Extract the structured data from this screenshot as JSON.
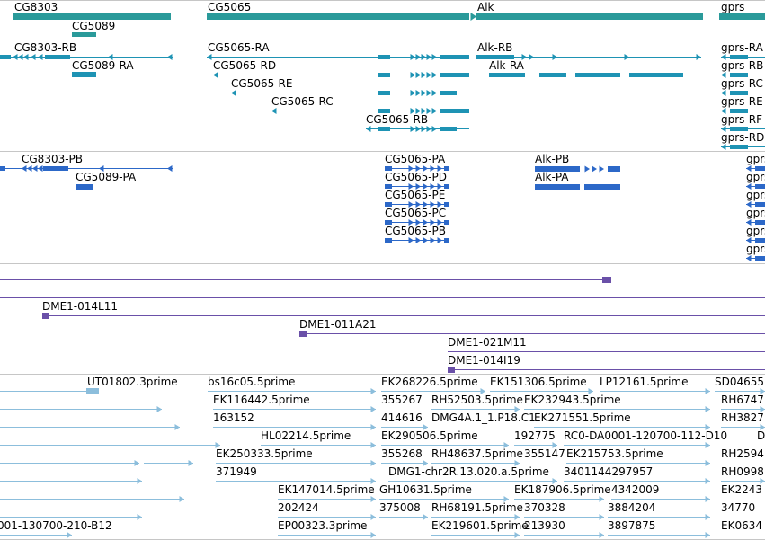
{
  "colors": {
    "gene": "#2a9a9a",
    "transcript": "#1e93b4",
    "protein": "#2c68c8",
    "bac": "#6a50a8",
    "est": "#8cbedc"
  },
  "tracks": {
    "genes": [
      {
        "label": "CG8303"
      },
      {
        "label": "CG5089"
      },
      {
        "label": "CG5065"
      },
      {
        "label": "Alk"
      },
      {
        "label": "gprs"
      }
    ],
    "transcripts": [
      {
        "label": "CG8303-RB"
      },
      {
        "label": "CG5089-RA"
      },
      {
        "label": "CG5065-RA"
      },
      {
        "label": "CG5065-RD"
      },
      {
        "label": "CG5065-RE"
      },
      {
        "label": "CG5065-RC"
      },
      {
        "label": "CG5065-RB"
      },
      {
        "label": "Alk-RB"
      },
      {
        "label": "Alk-RA"
      },
      {
        "label": "gprs-RA"
      },
      {
        "label": "gprs-RB"
      },
      {
        "label": "gprs-RC"
      },
      {
        "label": "gprs-RE"
      },
      {
        "label": "gprs-RF"
      },
      {
        "label": "gprs-RD"
      }
    ],
    "proteins": [
      {
        "label": "CG8303-PB"
      },
      {
        "label": "CG5089-PA"
      },
      {
        "label": "CG5065-PA"
      },
      {
        "label": "CG5065-PD"
      },
      {
        "label": "CG5065-PE"
      },
      {
        "label": "CG5065-PC"
      },
      {
        "label": "CG5065-PB"
      },
      {
        "label": "Alk-PB"
      },
      {
        "label": "Alk-PA"
      },
      {
        "label": "gprs"
      },
      {
        "label": "gprs"
      },
      {
        "label": "gprs"
      },
      {
        "label": "gprs"
      },
      {
        "label": "gprs"
      },
      {
        "label": "gprs"
      }
    ],
    "bacs": [
      {
        "label": "DME1-014L11"
      },
      {
        "label": "DME1-011A21"
      },
      {
        "label": "DME1-021M11"
      },
      {
        "label": "DME1-014I19"
      }
    ],
    "ests": [
      {
        "label": "UT01802.3prime"
      },
      {
        "label": "bs16c05.5prime"
      },
      {
        "label": "EK268226.5prime"
      },
      {
        "label": "EK151306.5prime"
      },
      {
        "label": "LP12161.5prime"
      },
      {
        "label": "SD04655"
      },
      {
        "label": "EK116442.5prime"
      },
      {
        "label": "355267"
      },
      {
        "label": "RH52503.5prime"
      },
      {
        "label": "EK232943.5prime"
      },
      {
        "label": "RH6747"
      },
      {
        "label": "163152"
      },
      {
        "label": "414616"
      },
      {
        "label": "DMG4A.1_1.P18.C1"
      },
      {
        "label": "EK271551.5prime"
      },
      {
        "label": "RH3827"
      },
      {
        "label": "HL02214.5prime"
      },
      {
        "label": "EK290506.5prime"
      },
      {
        "label": "192775"
      },
      {
        "label": "RC0-DA0001-120700-112-D10"
      },
      {
        "label": "D"
      },
      {
        "label": "EK250333.5prime"
      },
      {
        "label": "355268"
      },
      {
        "label": "RH48637.5prime"
      },
      {
        "label": "355147"
      },
      {
        "label": "EK215753.5prime"
      },
      {
        "label": "RH2594"
      },
      {
        "label": "371949"
      },
      {
        "label": "DMG1-chr2R.13.020.a.5prime"
      },
      {
        "label": "3401144297957"
      },
      {
        "label": "RH0998"
      },
      {
        "label": "EK147014.5prime"
      },
      {
        "label": "GH10631.5prime"
      },
      {
        "label": "EK187906.5prime"
      },
      {
        "label": "4342009"
      },
      {
        "label": "EK2243"
      },
      {
        "label": "202424"
      },
      {
        "label": "375008"
      },
      {
        "label": "RH68191.5prime"
      },
      {
        "label": "370328"
      },
      {
        "label": "3884204"
      },
      {
        "label": "34770"
      },
      {
        "label": "001-130700-210-B12"
      },
      {
        "label": "EP00323.3prime"
      },
      {
        "label": "EK219601.5prime"
      },
      {
        "label": "213930"
      },
      {
        "label": "3897875"
      },
      {
        "label": "EK0634"
      }
    ]
  }
}
